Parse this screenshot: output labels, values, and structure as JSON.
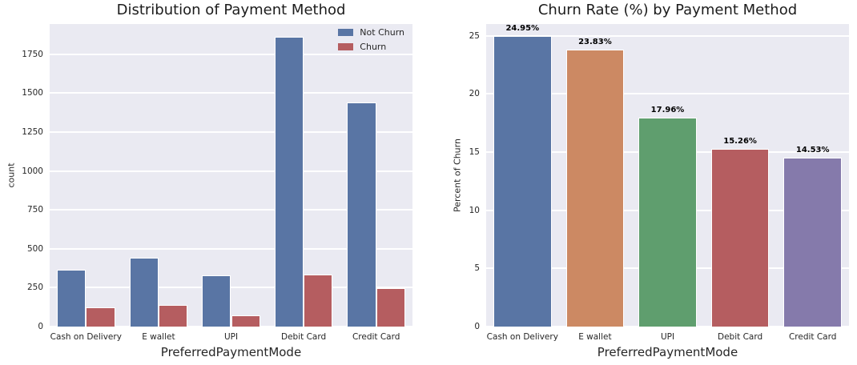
{
  "style": {
    "figure_background": "#FFFFFF",
    "plot_background": "#EAEAF2",
    "grid_color": "#FFFFFF",
    "text_color": "#262626",
    "bar_label_color": "#000000"
  },
  "chart_data": [
    {
      "type": "bar",
      "title": "Distribution of Payment Method",
      "xlabel": "PreferredPaymentMode",
      "ylabel": "count",
      "categories": [
        "Cash on Delivery",
        "E wallet",
        "UPI",
        "Debit Card",
        "Credit Card"
      ],
      "series": [
        {
          "name": "Not Churn",
          "color": "#5975A4",
          "values": [
            364,
            441,
            329,
            1861,
            1441
          ]
        },
        {
          "name": "Churn",
          "color": "#B55D60",
          "values": [
            121,
            138,
            72,
            335,
            245
          ]
        }
      ],
      "yticks": [
        0,
        250,
        500,
        750,
        1000,
        1250,
        1500,
        1750
      ],
      "ylim": [
        0,
        1944
      ],
      "grid": "horizontal",
      "legend": {
        "position": "upper right",
        "entries": [
          "Not Churn",
          "Churn"
        ]
      }
    },
    {
      "type": "bar",
      "title": "Churn Rate (%) by Payment Method",
      "xlabel": "PreferredPaymentMode",
      "ylabel": "Percent of Churn",
      "categories": [
        "Cash on Delivery",
        "E wallet",
        "UPI",
        "Debit Card",
        "Credit Card"
      ],
      "values": [
        24.95,
        23.83,
        17.96,
        15.26,
        14.53
      ],
      "bar_labels": [
        "24.95%",
        "23.83%",
        "17.96%",
        "15.26%",
        "14.53%"
      ],
      "bar_colors": [
        "#5975A4",
        "#CC8963",
        "#5F9E6E",
        "#B55D60",
        "#857AAB"
      ],
      "yticks": [
        0,
        5,
        10,
        15,
        20,
        25
      ],
      "ylim": [
        0,
        26
      ],
      "grid": "horizontal",
      "legend": null
    }
  ]
}
